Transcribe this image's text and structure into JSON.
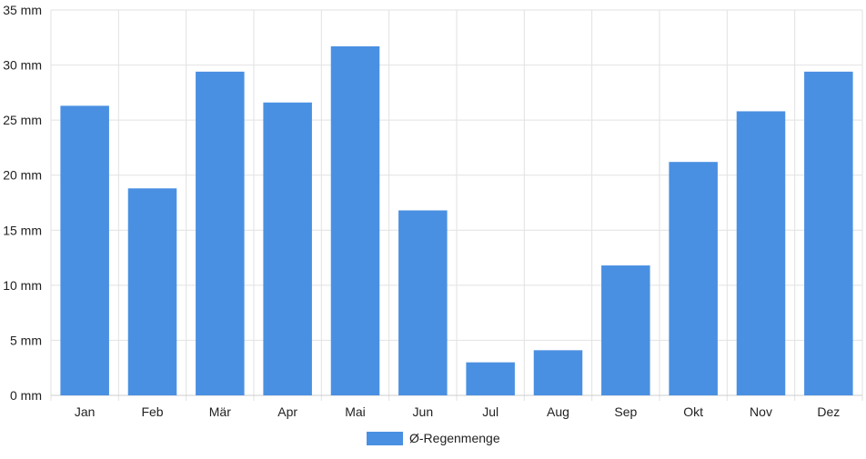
{
  "chart_data": {
    "type": "bar",
    "categories": [
      "Jan",
      "Feb",
      "Mär",
      "Apr",
      "Mai",
      "Jun",
      "Jul",
      "Aug",
      "Sep",
      "Okt",
      "Nov",
      "Dez"
    ],
    "series": [
      {
        "name": "Ø-Regenmenge",
        "values": [
          26.3,
          18.8,
          29.4,
          26.6,
          31.7,
          16.8,
          3.0,
          4.1,
          11.8,
          21.2,
          25.8,
          29.4
        ]
      }
    ],
    "ylim": [
      0,
      35
    ],
    "yticks": [
      0,
      5,
      10,
      15,
      20,
      25,
      30,
      35
    ],
    "y_unit": "mm",
    "grid": true,
    "legend": "bottom-center",
    "colors": {
      "bar": "#4a90e2",
      "grid": "#e2e2e2",
      "axis": "#cccccc",
      "text": "#222222"
    }
  }
}
